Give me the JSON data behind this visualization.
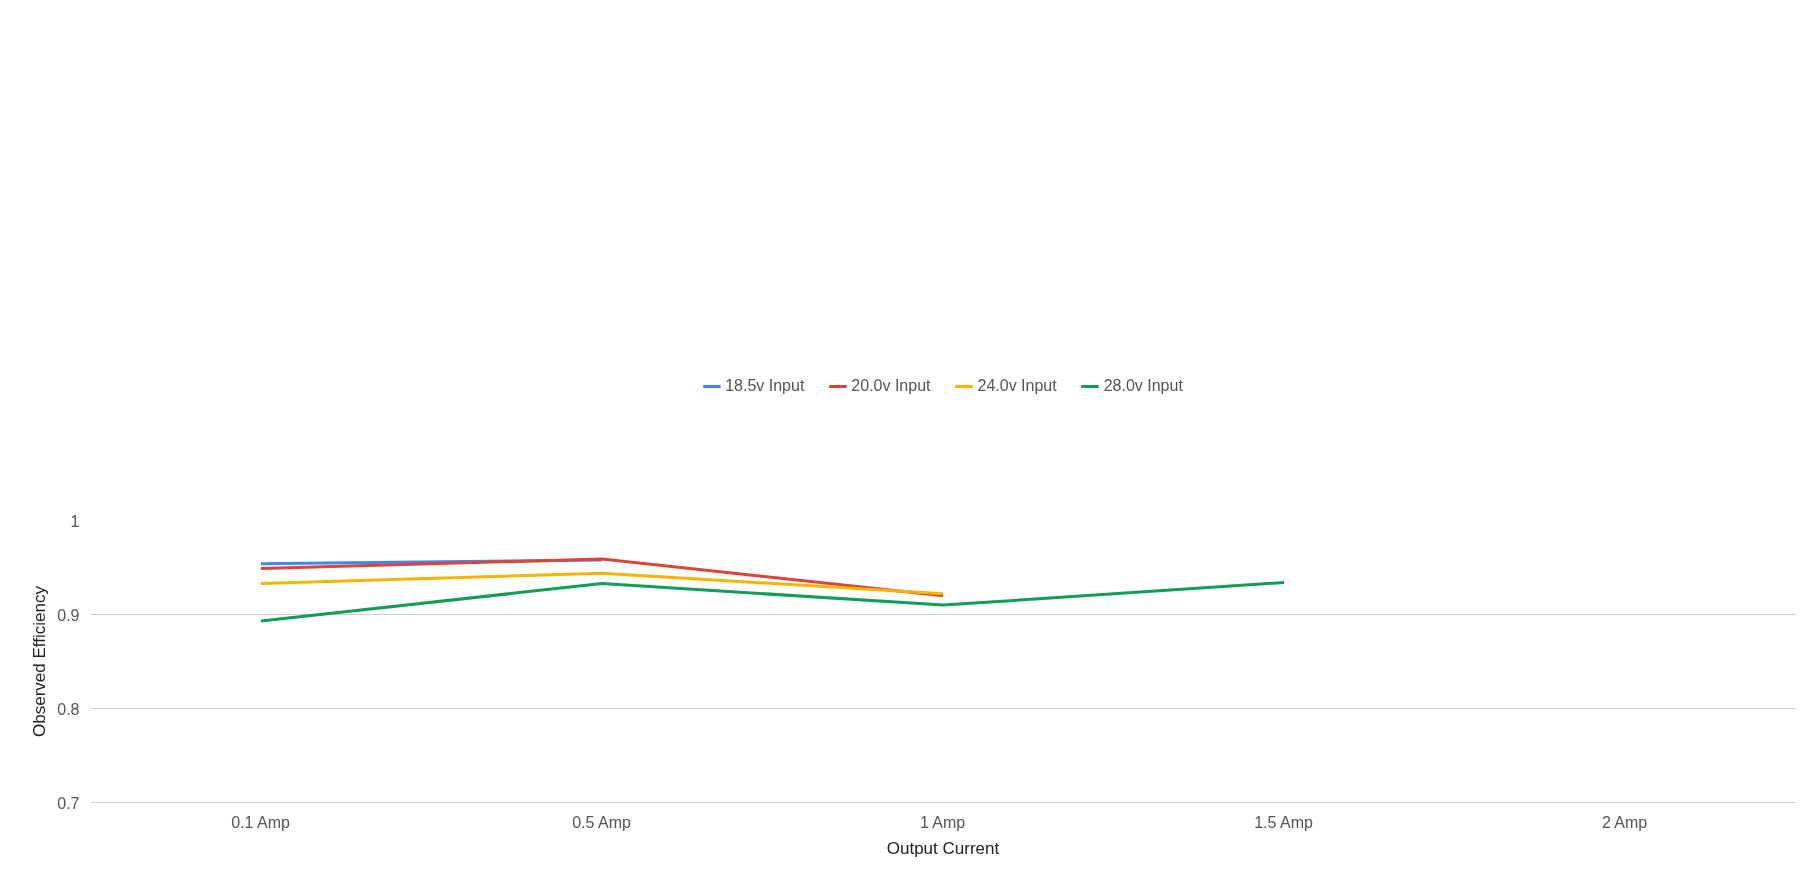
{
  "chart_data": {
    "type": "line",
    "xlabel": "Output Current",
    "ylabel": "Observed Efficiency",
    "categories": [
      "0.1 Amp",
      "0.5 Amp",
      "1 Amp",
      "1.5 Amp",
      "2 Amp"
    ],
    "series": [
      {
        "name": "18.5v Input",
        "color": "#4285f4",
        "values": [
          0.954,
          0.958,
          null,
          null,
          null
        ]
      },
      {
        "name": "20.0v Input",
        "color": "#db4437",
        "values": [
          0.949,
          0.959,
          0.92,
          null,
          null
        ]
      },
      {
        "name": "24.0v Input",
        "color": "#f4b400",
        "values": [
          0.933,
          0.944,
          0.922,
          null,
          null
        ]
      },
      {
        "name": "28.0v Input",
        "color": "#0f9d58",
        "values": [
          0.893,
          0.933,
          0.91,
          0.934,
          null
        ]
      }
    ],
    "ylim": [
      0.7,
      1
    ],
    "yticks": [
      0.7,
      0.8,
      0.9,
      1
    ],
    "grid": "y",
    "legend": "top",
    "marker": "none",
    "line_style": "solid"
  }
}
